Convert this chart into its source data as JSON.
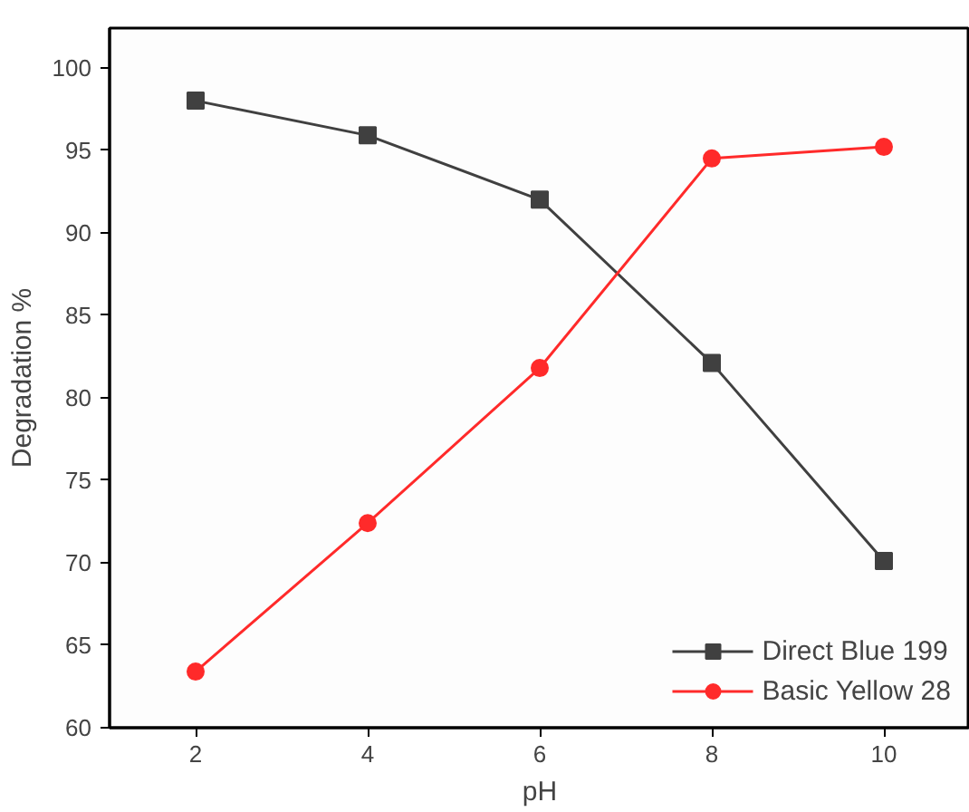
{
  "chart_data": {
    "type": "line",
    "xlabel": "pH",
    "ylabel": "Degradation %",
    "x": [
      2,
      4,
      6,
      8,
      10
    ],
    "series": [
      {
        "name": "Direct Blue 199",
        "color": "#404040",
        "marker": "square",
        "values": [
          98,
          95.9,
          92,
          82.1,
          70.1
        ]
      },
      {
        "name": "Basic Yellow 28",
        "color": "#ff2a2a",
        "marker": "circle",
        "values": [
          63.4,
          72.4,
          81.8,
          94.5,
          95.2
        ]
      }
    ],
    "xlim": [
      1,
      11
    ],
    "xticks": [
      2,
      4,
      6,
      8,
      10
    ],
    "ylim": [
      60,
      102.4
    ],
    "yticks": [
      60,
      65,
      70,
      75,
      80,
      85,
      90,
      95,
      100
    ],
    "grid": false,
    "legend": "bottom right",
    "line_style": "solid"
  }
}
